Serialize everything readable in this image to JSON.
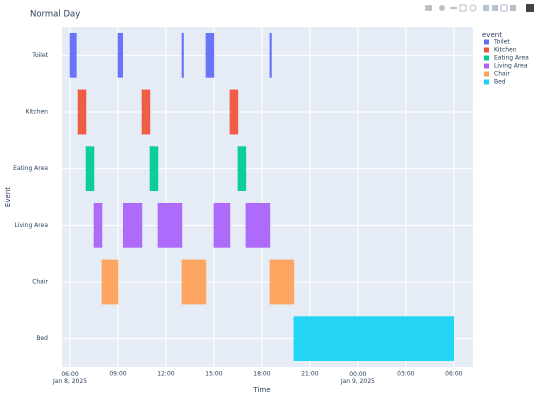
{
  "chart_data": {
    "type": "timeline",
    "title": "Normal Day",
    "x_label": "Time",
    "y_label": "Event",
    "legend_title": "event",
    "legend": "right",
    "categories": [
      "Toilet",
      "Kitchen",
      "Eating Area",
      "Living Area",
      "Chair",
      "Bed"
    ],
    "series": [
      {
        "name": "Toilet",
        "color": "#636efa",
        "start": [
          6.0,
          9.0,
          13.0,
          14.5,
          18.5
        ],
        "end": [
          6.4,
          9.3,
          13.1,
          15.0,
          18.6
        ]
      },
      {
        "name": "Kitchen",
        "color": "#EF553B",
        "start": [
          6.5,
          10.5,
          16.0
        ],
        "end": [
          7.0,
          11.0,
          16.5
        ]
      },
      {
        "name": "Eating Area",
        "color": "#00cc96",
        "start": [
          7.0,
          11.0,
          16.5
        ],
        "end": [
          7.5,
          11.5,
          17.0
        ]
      },
      {
        "name": "Living Area",
        "color": "#ab63fa",
        "start": [
          7.5,
          9.33,
          11.5,
          15.0,
          17.0
        ],
        "end": [
          8.0,
          10.5,
          13.0,
          16.0,
          18.5
        ]
      },
      {
        "name": "Chair",
        "color": "#FFA15A",
        "start": [
          8.0,
          13.0,
          18.5
        ],
        "end": [
          9.0,
          14.5,
          20.0
        ]
      },
      {
        "name": "Bed",
        "color": "#19d3f3",
        "start": [
          20.0
        ],
        "end": [
          30.0
        ]
      }
    ],
    "xlim": [
      5.5,
      31.2
    ],
    "xticks": [
      {
        "value": 6,
        "label": "06:00\nJan 8, 2025"
      },
      {
        "value": 9,
        "label": "09:00"
      },
      {
        "value": 12,
        "label": "12:00"
      },
      {
        "value": 15,
        "label": "15:00"
      },
      {
        "value": 18,
        "label": "18:00"
      },
      {
        "value": 21,
        "label": "21:00"
      },
      {
        "value": 24,
        "label": "00:00\nJan 9, 2025"
      },
      {
        "value": 27,
        "label": "03:00"
      },
      {
        "value": 30,
        "label": "06:00"
      }
    ],
    "grid": true
  }
}
